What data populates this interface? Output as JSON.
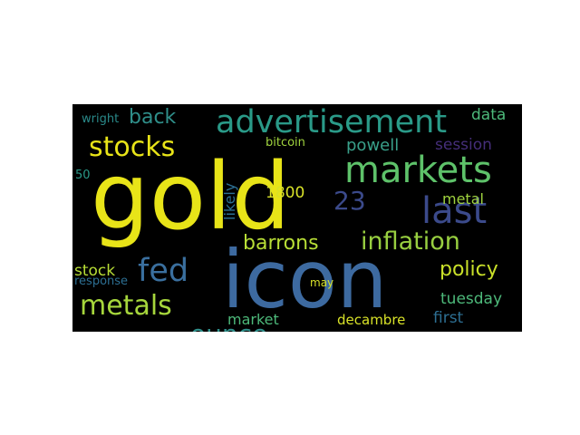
{
  "colors": {
    "background": "#000000",
    "page": "#ffffff"
  },
  "words": {
    "gold": "gold",
    "icon": "icon",
    "markets": "markets",
    "advertisement": "advertisement",
    "stocks": "stocks",
    "last": "last",
    "fed": "fed",
    "inflation": "inflation",
    "metals": "metals",
    "barrons": "barrons",
    "ounce": "ounce",
    "policy": "policy",
    "back": "back",
    "data": "data",
    "powell": "powell",
    "session": "session",
    "n23": "23",
    "n1800": "1800",
    "metal": "metal",
    "likely": "likely",
    "bitcoin": "bitcoin",
    "wright": "wright",
    "n50": "50",
    "stock": "stock",
    "response": "response",
    "may": "may",
    "tuesday": "tuesday",
    "market": "market",
    "decambre": "decambre",
    "first": "first"
  }
}
